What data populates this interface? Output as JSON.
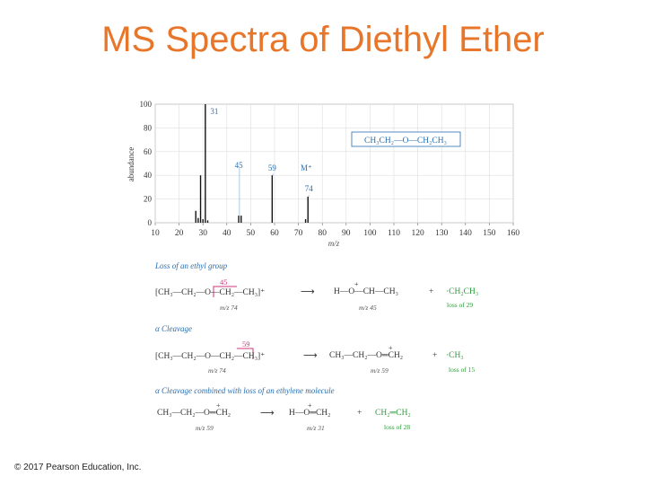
{
  "slide": {
    "title": "MS Spectra of Diethyl Ether",
    "copyright": "© 2017 Pearson Education, Inc."
  },
  "colors": {
    "title": "#e8762a",
    "blue": "#2a6fb0",
    "magenta": "#d0357a",
    "green": "#2e9b3a"
  },
  "chart_data": {
    "type": "bar",
    "xlabel": "m/z",
    "ylabel": "abundance",
    "xlim": [
      10,
      160
    ],
    "ylim": [
      0,
      100
    ],
    "xticks": [
      10,
      20,
      30,
      40,
      50,
      60,
      70,
      80,
      90,
      100,
      110,
      120,
      130,
      140,
      150,
      160
    ],
    "yticks": [
      0,
      20,
      40,
      60,
      80,
      100
    ],
    "grid": true,
    "structure_label": "CH₃CH₂—O—CH₂CH₃",
    "peaks": [
      {
        "x": 27,
        "y": 10
      },
      {
        "x": 28,
        "y": 4
      },
      {
        "x": 29,
        "y": 40
      },
      {
        "x": 30,
        "y": 3
      },
      {
        "x": 31,
        "y": 100
      },
      {
        "x": 32,
        "y": 2
      },
      {
        "x": 45,
        "y": 6
      },
      {
        "x": 46,
        "y": 6
      },
      {
        "x": 59,
        "y": 40
      },
      {
        "x": 73,
        "y": 3
      },
      {
        "x": 74,
        "y": 22
      }
    ],
    "peak_labels": [
      {
        "x": 31,
        "y": 100,
        "text": "31"
      },
      {
        "x": 45,
        "y": 6,
        "text": "45"
      },
      {
        "x": 59,
        "y": 40,
        "text": "59"
      },
      {
        "x": 74,
        "y": 22,
        "text": "74"
      }
    ],
    "molecular_ion_label": "M⁺"
  },
  "mechanisms": {
    "ethyl_loss": {
      "heading": "Loss of an ethyl group",
      "reactant": "[CH₃—CH₂—O—CH₂—CH₃]⁺",
      "cut_label": "45",
      "reactant_mz": "m/z 74",
      "product": "H—O—CH—CH₃",
      "product_charge": "+",
      "product_mz": "m/z 45",
      "radical": "·CH₂CH₃",
      "loss": "loss of 29"
    },
    "alpha": {
      "heading": "α Cleavage",
      "reactant": "[CH₃—CH₂—O—CH₂—CH₃]⁺",
      "cut_label": "59",
      "reactant_mz": "m/z 74",
      "product": "CH₃—CH₂—O═CH₂",
      "product_charge": "+",
      "product_mz": "m/z 59",
      "radical": "·CH₃",
      "loss": "loss of 15"
    },
    "alpha_ethylene": {
      "heading": "α Cleavage combined with loss of an ethylene molecule",
      "reactant": "CH₃—CH₂—O═CH₂",
      "reactant_charge": "+",
      "reactant_mz": "m/z 59",
      "product": "H—O═CH₂",
      "product_charge": "+",
      "product_mz": "m/z 31",
      "neutral": "CH₂═CH₂",
      "loss": "loss of 28"
    }
  }
}
